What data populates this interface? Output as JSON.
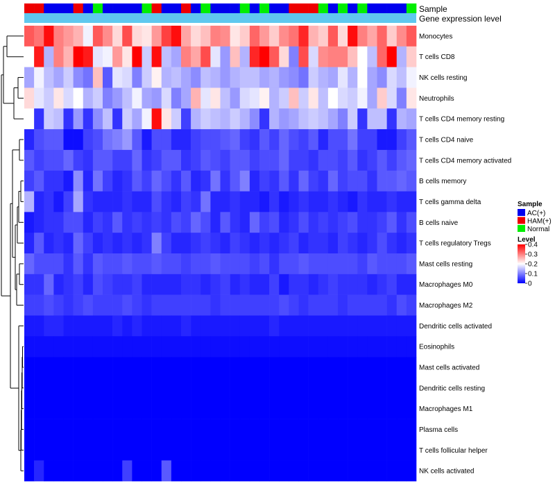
{
  "chart_data": {
    "type": "heatmap",
    "title": "",
    "annotation_tracks": [
      {
        "name": "Sample",
        "label": "Sample"
      },
      {
        "name": "Gene expression level",
        "label": "Gene expression level",
        "color": "#5fc8ee"
      }
    ],
    "legend_sample": {
      "title": "Sample",
      "entries": [
        {
          "label": "AC(+)",
          "key": "AC",
          "color": "#0000ee"
        },
        {
          "label": "HAM(+)",
          "key": "HAM",
          "color": "#ee0000"
        },
        {
          "label": "Normal",
          "key": "Normal",
          "color": "#00ee00"
        }
      ]
    },
    "legend_level": {
      "title": "Level",
      "range": [
        0,
        0.4
      ],
      "ticks": [
        {
          "label": "0.4",
          "value": 0.4
        },
        {
          "label": "0.3",
          "value": 0.3
        },
        {
          "label": "0.2",
          "value": 0.2
        },
        {
          "label": "0.1",
          "value": 0.1
        },
        {
          "label": "0",
          "value": 0.0
        }
      ],
      "colors": [
        "#0000ff",
        "#ffffff",
        "#ff0000"
      ],
      "midpoint": 0.2
    },
    "sample_groups": [
      "HAM",
      "HAM",
      "AC",
      "AC",
      "AC",
      "HAM",
      "AC",
      "Normal",
      "AC",
      "AC",
      "AC",
      "AC",
      "Normal",
      "HAM",
      "AC",
      "AC",
      "HAM",
      "AC",
      "Normal",
      "AC",
      "AC",
      "AC",
      "Normal",
      "AC",
      "Normal",
      "AC",
      "AC",
      "HAM",
      "HAM",
      "HAM",
      "Normal",
      "AC",
      "Normal",
      "AC",
      "Normal",
      "AC",
      "AC",
      "AC",
      "AC",
      "Normal"
    ],
    "rows": [
      {
        "label": "Monocytes",
        "values": [
          0.33,
          0.31,
          0.39,
          0.3,
          0.28,
          0.26,
          0.19,
          0.33,
          0.29,
          0.23,
          0.34,
          0.23,
          0.22,
          0.28,
          0.35,
          0.39,
          0.27,
          0.23,
          0.25,
          0.3,
          0.29,
          0.22,
          0.24,
          0.32,
          0.28,
          0.24,
          0.29,
          0.31,
          0.37,
          0.26,
          0.24,
          0.33,
          0.23,
          0.39,
          0.3,
          0.27,
          0.32,
          0.24,
          0.29,
          0.33
        ]
      },
      {
        "label": "T cells CD8",
        "values": [
          0.2,
          0.38,
          0.14,
          0.3,
          0.26,
          0.4,
          0.38,
          0.18,
          0.19,
          0.28,
          0.22,
          0.4,
          0.16,
          0.39,
          0.15,
          0.13,
          0.3,
          0.27,
          0.34,
          0.18,
          0.12,
          0.25,
          0.14,
          0.37,
          0.4,
          0.33,
          0.23,
          0.1,
          0.34,
          0.17,
          0.29,
          0.3,
          0.3,
          0.25,
          0.2,
          0.15,
          0.32,
          0.4,
          0.14,
          0.24
        ]
      },
      {
        "label": "NK cells resting",
        "values": [
          0.13,
          0.19,
          0.15,
          0.13,
          0.16,
          0.11,
          0.09,
          0.25,
          0.07,
          0.18,
          0.17,
          0.1,
          0.16,
          0.21,
          0.14,
          0.15,
          0.13,
          0.11,
          0.15,
          0.14,
          0.12,
          0.14,
          0.15,
          0.15,
          0.13,
          0.14,
          0.12,
          0.11,
          0.09,
          0.16,
          0.14,
          0.13,
          0.18,
          0.14,
          0.2,
          0.13,
          0.11,
          0.17,
          0.15,
          0.19
        ]
      },
      {
        "label": "Neutrophils",
        "values": [
          0.23,
          0.18,
          0.16,
          0.22,
          0.17,
          0.2,
          0.14,
          0.16,
          0.1,
          0.12,
          0.15,
          0.19,
          0.13,
          0.12,
          0.17,
          0.1,
          0.13,
          0.26,
          0.18,
          0.22,
          0.15,
          0.12,
          0.17,
          0.18,
          0.21,
          0.14,
          0.16,
          0.25,
          0.16,
          0.22,
          0.15,
          0.2,
          0.17,
          0.16,
          0.19,
          0.13,
          0.24,
          0.17,
          0.1,
          0.22
        ]
      },
      {
        "label": "T cells CD4 memory resting",
        "values": [
          0.2,
          0.04,
          0.16,
          0.15,
          0.04,
          0.12,
          0.04,
          0.11,
          0.15,
          0.04,
          0.16,
          0.13,
          0.19,
          0.39,
          0.22,
          0.16,
          0.05,
          0.14,
          0.16,
          0.15,
          0.14,
          0.16,
          0.14,
          0.11,
          0.04,
          0.14,
          0.12,
          0.13,
          0.15,
          0.16,
          0.15,
          0.13,
          0.1,
          0.16,
          0.04,
          0.15,
          0.15,
          0.04,
          0.14,
          0.13
        ]
      },
      {
        "label": "T cells CD4 naive",
        "values": [
          0.03,
          0.06,
          0.07,
          0.07,
          0.01,
          0.01,
          0.05,
          0.06,
          0.09,
          0.1,
          0.12,
          0.07,
          0.02,
          0.06,
          0.06,
          0.03,
          0.03,
          0.05,
          0.06,
          0.06,
          0.07,
          0.08,
          0.05,
          0.04,
          0.07,
          0.05,
          0.08,
          0.06,
          0.05,
          0.07,
          0.03,
          0.06,
          0.06,
          0.09,
          0.05,
          0.05,
          0.02,
          0.02,
          0.05,
          0.07
        ]
      },
      {
        "label": "T cells CD4 memory activated",
        "values": [
          0.07,
          0.05,
          0.06,
          0.06,
          0.08,
          0.05,
          0.04,
          0.07,
          0.07,
          0.05,
          0.05,
          0.08,
          0.04,
          0.05,
          0.07,
          0.07,
          0.04,
          0.05,
          0.07,
          0.06,
          0.05,
          0.07,
          0.07,
          0.05,
          0.06,
          0.06,
          0.08,
          0.05,
          0.05,
          0.04,
          0.06,
          0.06,
          0.05,
          0.07,
          0.04,
          0.05,
          0.07,
          0.05,
          0.07,
          0.08
        ]
      },
      {
        "label": "B cells memory",
        "values": [
          0.05,
          0.07,
          0.04,
          0.04,
          0.02,
          0.11,
          0.03,
          0.09,
          0.05,
          0.03,
          0.04,
          0.07,
          0.05,
          0.08,
          0.06,
          0.04,
          0.07,
          0.03,
          0.04,
          0.09,
          0.04,
          0.07,
          0.1,
          0.03,
          0.05,
          0.04,
          0.07,
          0.04,
          0.08,
          0.05,
          0.04,
          0.08,
          0.05,
          0.06,
          0.06,
          0.04,
          0.07,
          0.07,
          0.08,
          0.07
        ]
      },
      {
        "label": "T cells gamma delta",
        "values": [
          0.14,
          0.03,
          0.04,
          0.02,
          0.05,
          0.13,
          0.04,
          0.03,
          0.03,
          0.03,
          0.04,
          0.03,
          0.03,
          0.06,
          0.04,
          0.03,
          0.05,
          0.04,
          0.09,
          0.03,
          0.03,
          0.04,
          0.03,
          0.03,
          0.02,
          0.04,
          0.02,
          0.03,
          0.04,
          0.03,
          0.03,
          0.04,
          0.03,
          0.02,
          0.04,
          0.03,
          0.03,
          0.04,
          0.03,
          0.03
        ]
      },
      {
        "label": "B cells naive",
        "values": [
          0.02,
          0.03,
          0.04,
          0.04,
          0.06,
          0.06,
          0.03,
          0.05,
          0.04,
          0.07,
          0.04,
          0.05,
          0.04,
          0.05,
          0.04,
          0.06,
          0.05,
          0.08,
          0.06,
          0.03,
          0.07,
          0.04,
          0.03,
          0.08,
          0.05,
          0.06,
          0.03,
          0.04,
          0.06,
          0.04,
          0.05,
          0.04,
          0.05,
          0.06,
          0.04,
          0.04,
          0.05,
          0.07,
          0.04,
          0.06
        ]
      },
      {
        "label": "T cells regulatory  Tregs",
        "values": [
          0.03,
          0.07,
          0.03,
          0.04,
          0.03,
          0.08,
          0.05,
          0.03,
          0.04,
          0.03,
          0.04,
          0.03,
          0.04,
          0.1,
          0.05,
          0.03,
          0.03,
          0.04,
          0.05,
          0.04,
          0.03,
          0.05,
          0.04,
          0.03,
          0.04,
          0.03,
          0.04,
          0.05,
          0.03,
          0.04,
          0.04,
          0.03,
          0.05,
          0.04,
          0.03,
          0.04,
          0.06,
          0.04,
          0.03,
          0.04
        ]
      },
      {
        "label": "Mast cells resting",
        "values": [
          0.08,
          0.06,
          0.06,
          0.06,
          0.04,
          0.07,
          0.04,
          0.07,
          0.06,
          0.06,
          0.07,
          0.06,
          0.06,
          0.07,
          0.06,
          0.06,
          0.05,
          0.06,
          0.06,
          0.07,
          0.06,
          0.06,
          0.06,
          0.05,
          0.06,
          0.04,
          0.06,
          0.06,
          0.07,
          0.06,
          0.06,
          0.06,
          0.06,
          0.06,
          0.05,
          0.07,
          0.06,
          0.06,
          0.06,
          0.07
        ]
      },
      {
        "label": "Macrophages M0",
        "values": [
          0.04,
          0.04,
          0.08,
          0.03,
          0.04,
          0.05,
          0.03,
          0.06,
          0.05,
          0.04,
          0.04,
          0.05,
          0.03,
          0.03,
          0.03,
          0.03,
          0.04,
          0.04,
          0.03,
          0.04,
          0.05,
          0.03,
          0.04,
          0.03,
          0.03,
          0.05,
          0.02,
          0.04,
          0.04,
          0.03,
          0.04,
          0.05,
          0.04,
          0.04,
          0.04,
          0.03,
          0.04,
          0.05,
          0.03,
          0.03
        ]
      },
      {
        "label": "Macrophages M2",
        "values": [
          0.05,
          0.05,
          0.06,
          0.05,
          0.04,
          0.05,
          0.06,
          0.05,
          0.05,
          0.05,
          0.06,
          0.05,
          0.04,
          0.05,
          0.05,
          0.05,
          0.05,
          0.05,
          0.05,
          0.04,
          0.05,
          0.05,
          0.05,
          0.05,
          0.05,
          0.05,
          0.06,
          0.05,
          0.04,
          0.05,
          0.05,
          0.05,
          0.04,
          0.05,
          0.05,
          0.05,
          0.05,
          0.04,
          0.06,
          0.05
        ]
      },
      {
        "label": "Dendritic cells activated",
        "values": [
          0.02,
          0.02,
          0.03,
          0.03,
          0.02,
          0.02,
          0.02,
          0.02,
          0.02,
          0.03,
          0.02,
          0.03,
          0.02,
          0.02,
          0.02,
          0.02,
          0.03,
          0.02,
          0.02,
          0.02,
          0.02,
          0.02,
          0.02,
          0.02,
          0.02,
          0.03,
          0.02,
          0.02,
          0.02,
          0.02,
          0.02,
          0.02,
          0.02,
          0.02,
          0.02,
          0.02,
          0.02,
          0.02,
          0.02,
          0.02
        ]
      },
      {
        "label": "Eosinophils",
        "values": [
          0.01,
          0.01,
          0.01,
          0.01,
          0.01,
          0.01,
          0.01,
          0.01,
          0.01,
          0.01,
          0.01,
          0.01,
          0.01,
          0.01,
          0.01,
          0.01,
          0.01,
          0.01,
          0.01,
          0.01,
          0.01,
          0.01,
          0.01,
          0.01,
          0.01,
          0.01,
          0.01,
          0.01,
          0.01,
          0.01,
          0.01,
          0.01,
          0.01,
          0.01,
          0.01,
          0.01,
          0.01,
          0.01,
          0.01,
          0.01
        ]
      },
      {
        "label": "Mast cells activated",
        "values": [
          0.0,
          0.0,
          0.0,
          0.0,
          0.0,
          0.0,
          0.0,
          0.0,
          0.0,
          0.0,
          0.0,
          0.0,
          0.0,
          0.0,
          0.0,
          0.0,
          0.0,
          0.0,
          0.0,
          0.0,
          0.0,
          0.0,
          0.0,
          0.0,
          0.0,
          0.0,
          0.0,
          0.0,
          0.0,
          0.0,
          0.0,
          0.0,
          0.0,
          0.0,
          0.0,
          0.0,
          0.0,
          0.0,
          0.0,
          0.0
        ]
      },
      {
        "label": "Dendritic cells resting",
        "values": [
          0.0,
          0.0,
          0.0,
          0.0,
          0.0,
          0.0,
          0.0,
          0.0,
          0.0,
          0.0,
          0.0,
          0.0,
          0.0,
          0.0,
          0.0,
          0.0,
          0.0,
          0.0,
          0.0,
          0.0,
          0.0,
          0.0,
          0.0,
          0.0,
          0.0,
          0.0,
          0.0,
          0.0,
          0.0,
          0.0,
          0.0,
          0.0,
          0.0,
          0.0,
          0.0,
          0.0,
          0.0,
          0.0,
          0.0,
          0.0
        ]
      },
      {
        "label": "Macrophages M1",
        "values": [
          0.0,
          0.0,
          0.0,
          0.0,
          0.0,
          0.0,
          0.0,
          0.0,
          0.0,
          0.0,
          0.0,
          0.0,
          0.0,
          0.0,
          0.0,
          0.0,
          0.0,
          0.0,
          0.0,
          0.0,
          0.0,
          0.0,
          0.0,
          0.0,
          0.0,
          0.0,
          0.0,
          0.0,
          0.0,
          0.0,
          0.0,
          0.0,
          0.0,
          0.0,
          0.0,
          0.0,
          0.0,
          0.0,
          0.0,
          0.0
        ]
      },
      {
        "label": "Plasma cells",
        "values": [
          0.0,
          0.0,
          0.0,
          0.0,
          0.0,
          0.0,
          0.0,
          0.0,
          0.0,
          0.0,
          0.0,
          0.0,
          0.0,
          0.0,
          0.0,
          0.0,
          0.0,
          0.0,
          0.0,
          0.0,
          0.0,
          0.0,
          0.0,
          0.0,
          0.0,
          0.0,
          0.0,
          0.0,
          0.0,
          0.0,
          0.0,
          0.0,
          0.0,
          0.0,
          0.0,
          0.0,
          0.0,
          0.0,
          0.0,
          0.0
        ]
      },
      {
        "label": "T cells follicular helper",
        "values": [
          0.0,
          0.0,
          0.0,
          0.0,
          0.0,
          0.0,
          0.0,
          0.0,
          0.0,
          0.0,
          0.0,
          0.0,
          0.0,
          0.0,
          0.0,
          0.0,
          0.0,
          0.0,
          0.0,
          0.0,
          0.0,
          0.0,
          0.0,
          0.0,
          0.0,
          0.0,
          0.0,
          0.0,
          0.0,
          0.0,
          0.0,
          0.0,
          0.0,
          0.0,
          0.0,
          0.0,
          0.0,
          0.0,
          0.0,
          0.0
        ]
      },
      {
        "label": "NK cells activated",
        "values": [
          0.0,
          0.03,
          0.0,
          0.0,
          0.0,
          0.0,
          0.0,
          0.0,
          0.0,
          0.0,
          0.05,
          0.0,
          0.0,
          0.0,
          0.07,
          0.0,
          0.0,
          0.0,
          0.0,
          0.0,
          0.0,
          0.0,
          0.0,
          0.0,
          0.0,
          0.0,
          0.0,
          0.0,
          0.0,
          0.0,
          0.0,
          0.0,
          0.0,
          0.0,
          0.0,
          0.0,
          0.0,
          0.0,
          0.0,
          0.0
        ]
      }
    ]
  }
}
